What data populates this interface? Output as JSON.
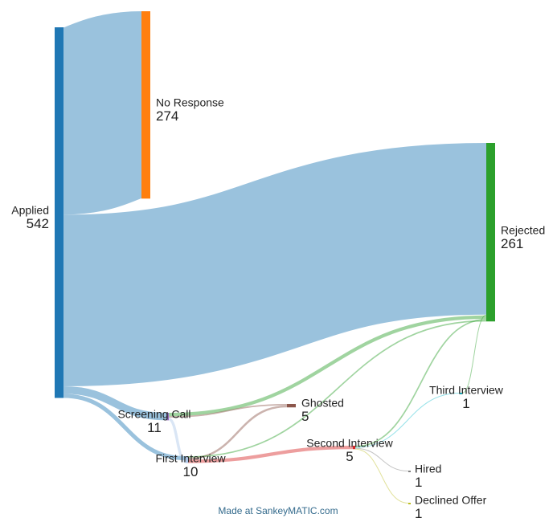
{
  "chart_data": {
    "type": "sankey",
    "nodes": [
      {
        "id": "applied",
        "name": "Applied",
        "value": "542",
        "color": "#1f77b4"
      },
      {
        "id": "no_response",
        "name": "No Response",
        "value": "274",
        "color": "#ff7f0e"
      },
      {
        "id": "rejected",
        "name": "Rejected",
        "value": "261",
        "color": "#2ca02c"
      },
      {
        "id": "screening_call",
        "name": "Screening Call",
        "value": "11",
        "color": "#9467bd"
      },
      {
        "id": "ghosted",
        "name": "Ghosted",
        "value": "5",
        "color": "#8c564b"
      },
      {
        "id": "first_interview",
        "name": "First Interview",
        "value": "10",
        "color": "#aec7e8"
      },
      {
        "id": "second_interview",
        "name": "Second Interview",
        "value": "5",
        "color": "#d62728"
      },
      {
        "id": "third_interview",
        "name": "Third Interview",
        "value": "1",
        "color": "#17becf"
      },
      {
        "id": "hired",
        "name": "Hired",
        "value": "1",
        "color": "#7f7f7f"
      },
      {
        "id": "declined_offer",
        "name": "Declined Offer",
        "value": "1",
        "color": "#bcbd22"
      }
    ],
    "flows": [
      {
        "source": "applied",
        "target": "no_response",
        "value": 274
      },
      {
        "source": "applied",
        "target": "rejected",
        "value": 251
      },
      {
        "source": "applied",
        "target": "screening_call",
        "value": 11
      },
      {
        "source": "applied",
        "target": "first_interview",
        "value": 6
      },
      {
        "source": "screening_call",
        "target": "rejected",
        "value": 5
      },
      {
        "source": "screening_call",
        "target": "ghosted",
        "value": 2
      },
      {
        "source": "screening_call",
        "target": "first_interview",
        "value": 4
      },
      {
        "source": "first_interview",
        "target": "ghosted",
        "value": 3
      },
      {
        "source": "first_interview",
        "target": "second_interview",
        "value": 5
      },
      {
        "source": "first_interview",
        "target": "rejected",
        "value": 2
      },
      {
        "source": "second_interview",
        "target": "rejected",
        "value": 2
      },
      {
        "source": "second_interview",
        "target": "third_interview",
        "value": 1
      },
      {
        "source": "second_interview",
        "target": "hired",
        "value": 1
      },
      {
        "source": "second_interview",
        "target": "declined_offer",
        "value": 1
      },
      {
        "source": "third_interview",
        "target": "rejected",
        "value": 1
      }
    ]
  },
  "footer": {
    "credit": "Made at SankeyMATIC.com"
  }
}
